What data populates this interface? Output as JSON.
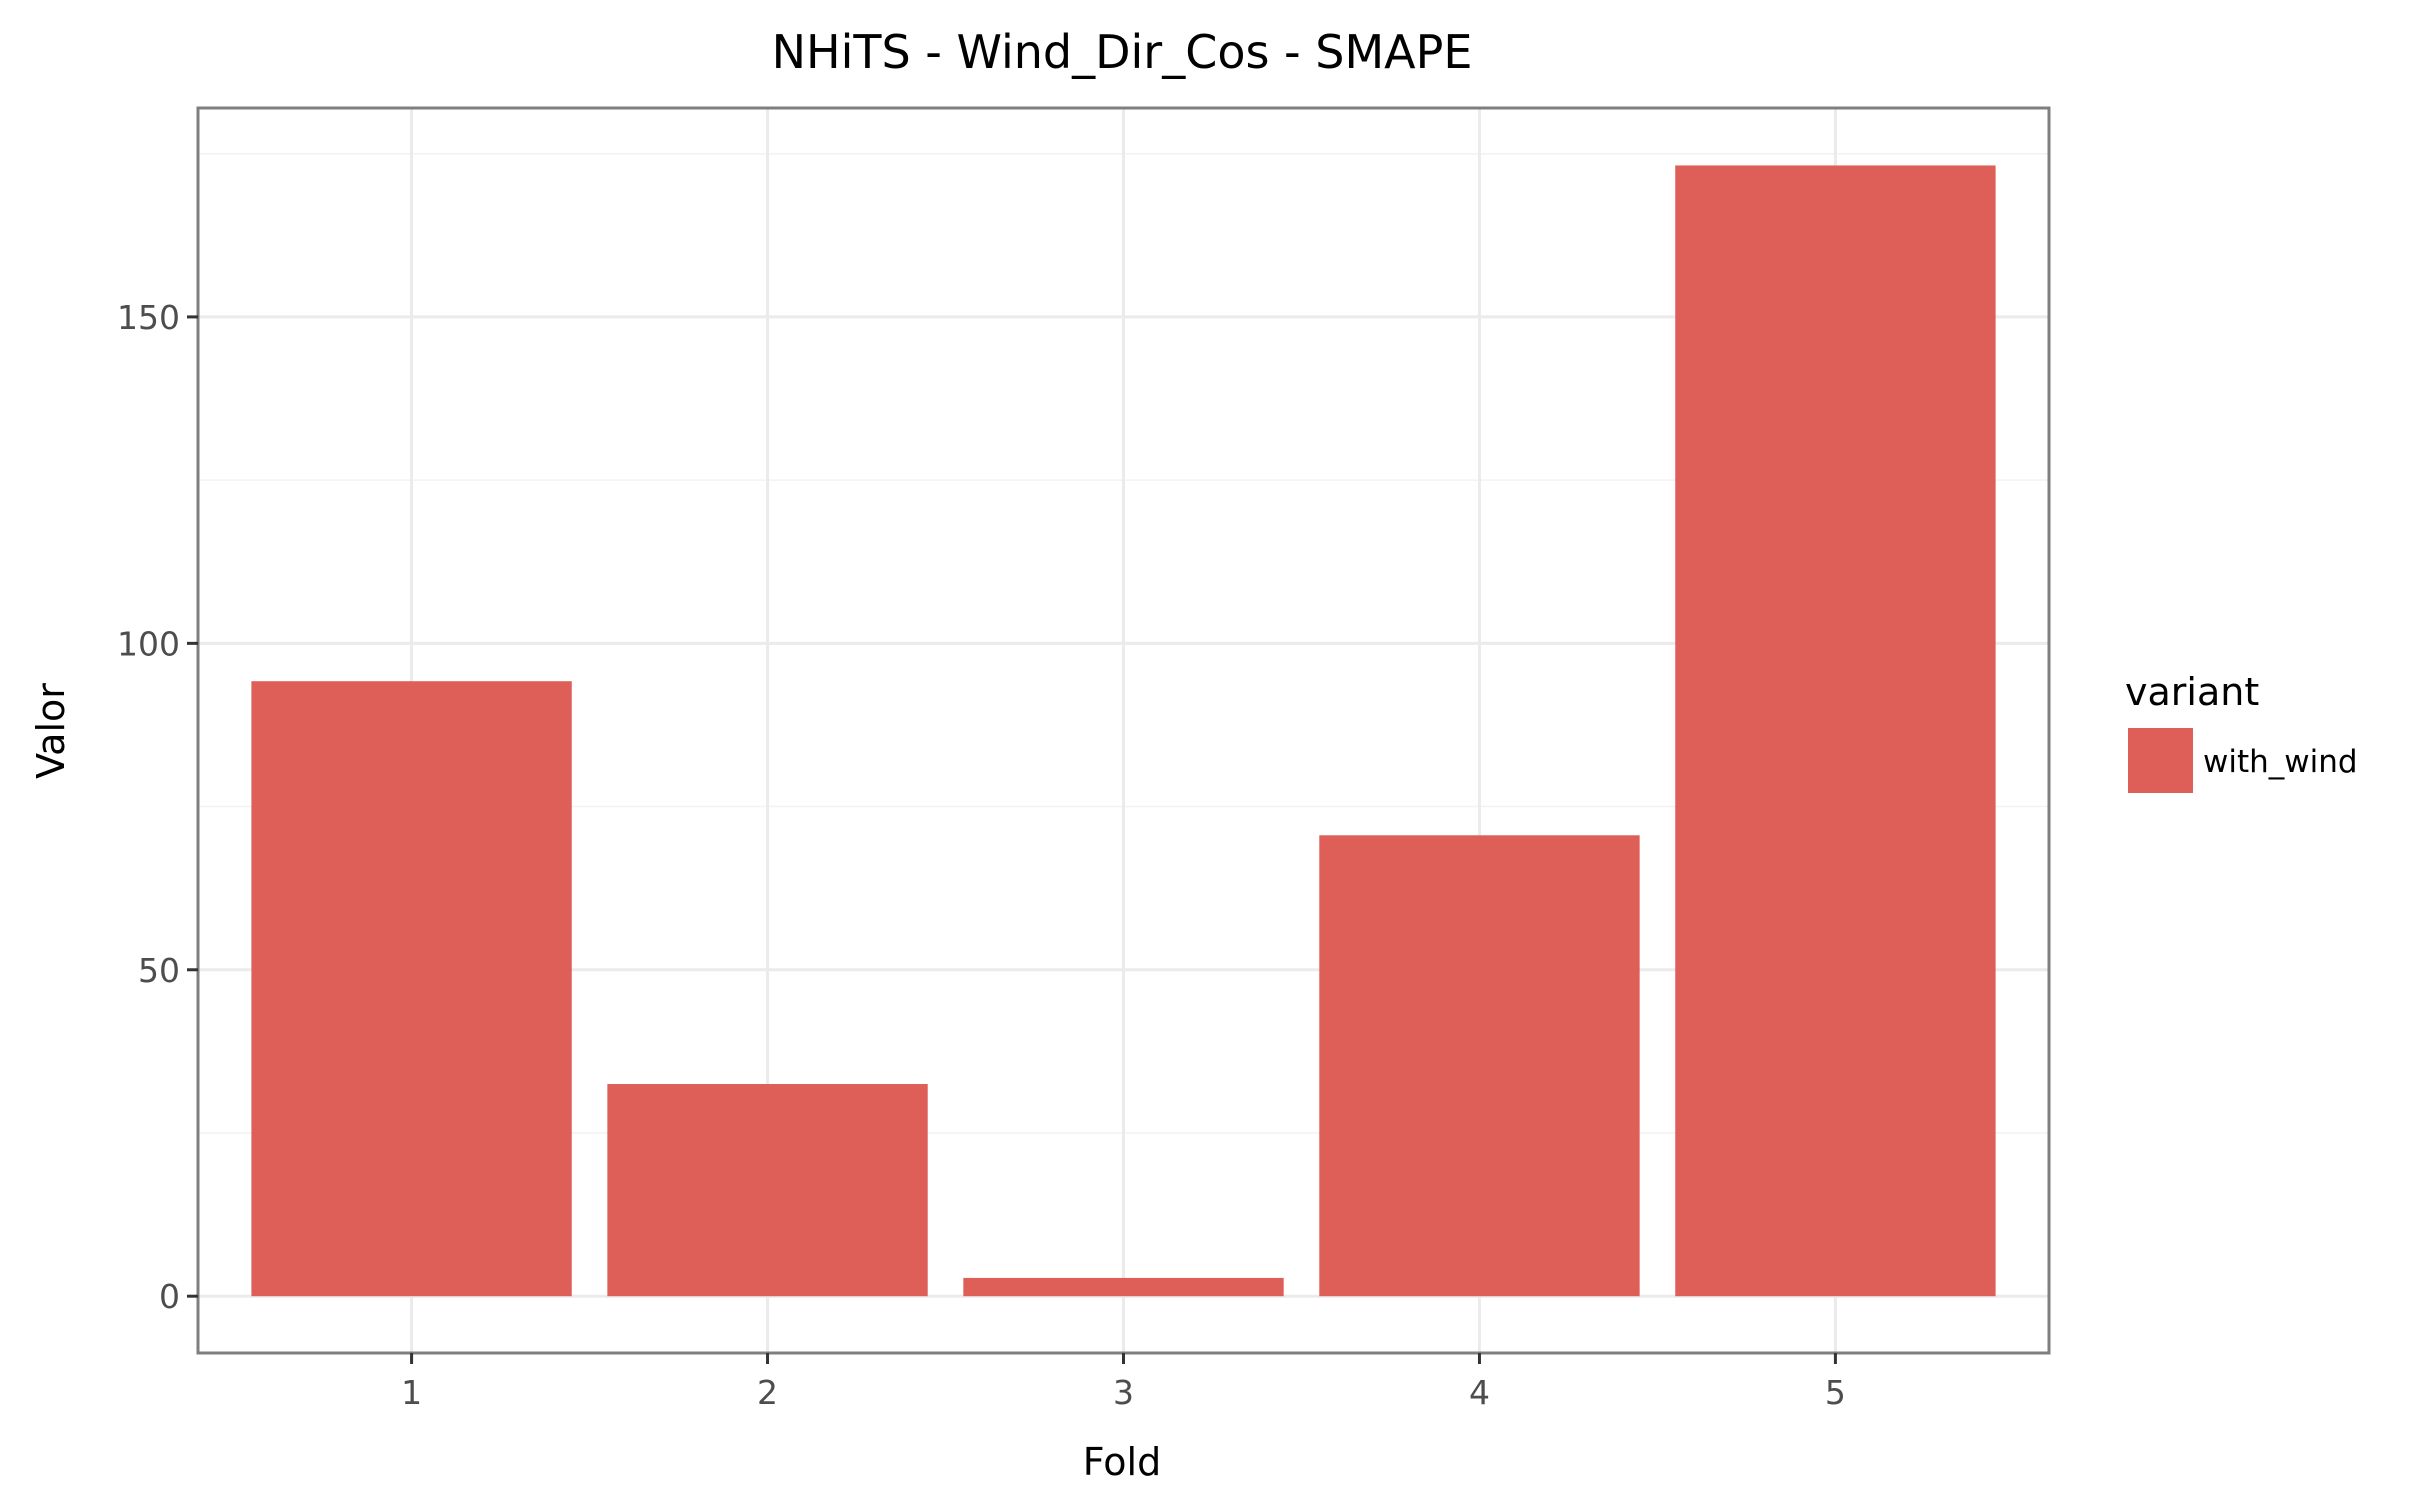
{
  "chart_data": {
    "type": "bar",
    "title": "NHiTS - Wind_Dir_Cos - SMAPE",
    "xlabel": "Fold",
    "ylabel": "Valor",
    "categories": [
      "1",
      "2",
      "3",
      "4",
      "5"
    ],
    "series": [
      {
        "name": "with_wind",
        "values": [
          94.2,
          32.5,
          2.8,
          70.6,
          173.2
        ],
        "color": "#dd5f57"
      }
    ],
    "ylim": [
      -8.7,
      182.0
    ],
    "yticks": [
      0,
      50,
      100,
      150
    ],
    "ytick_labels": [
      "0",
      "50",
      "100",
      "150"
    ],
    "grid": true,
    "legend": {
      "title": "variant",
      "position": "right"
    }
  }
}
